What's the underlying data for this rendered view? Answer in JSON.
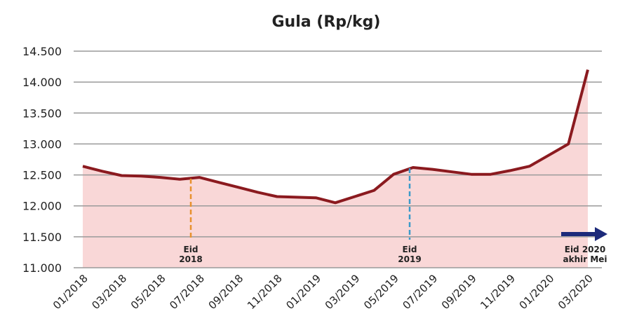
{
  "chart_data": {
    "type": "area",
    "title": "Gula (Rp/kg)",
    "categories": [
      "01/2018",
      null,
      "03/2018",
      null,
      "05/2018",
      null,
      "07/2018",
      null,
      "09/2018",
      null,
      "11/2018",
      null,
      "01/2019",
      null,
      "03/2019",
      null,
      "05/2019",
      null,
      "07/2019",
      null,
      "09/2019",
      null,
      "11/2019",
      null,
      "01/2020",
      null,
      "03/2020"
    ],
    "values": [
      12640,
      12560,
      12490,
      12480,
      12460,
      12430,
      12460,
      12380,
      12300,
      12220,
      12150,
      12140,
      12130,
      12050,
      12150,
      12250,
      12510,
      12620,
      12590,
      12550,
      12510,
      12510,
      12570,
      12640,
      12820,
      13000,
      14200
    ],
    "color": "#8b1a1f",
    "fill_color": "#f9d7d7",
    "ylim": [
      11000,
      14500
    ],
    "yticks": [
      {
        "value": 11000,
        "label": "11.000"
      },
      {
        "value": 11500,
        "label": "11.500"
      },
      {
        "value": 12000,
        "label": "12.000"
      },
      {
        "value": 12500,
        "label": "12.500"
      },
      {
        "value": 13000,
        "label": "13.000"
      },
      {
        "value": 13500,
        "label": "13.500"
      },
      {
        "value": 14000,
        "label": "14.000"
      },
      {
        "value": 14500,
        "label": "14.500"
      }
    ],
    "grid": true,
    "annotations": [
      {
        "text": [
          "Eid",
          "2018"
        ],
        "color": "#e8912e"
      },
      {
        "text": [
          "Eid",
          "2019"
        ],
        "color": "#3b9ac9"
      },
      {
        "text": [
          "Eid 2020",
          "akhir Mei"
        ],
        "color": "#1c2a7a"
      }
    ]
  }
}
